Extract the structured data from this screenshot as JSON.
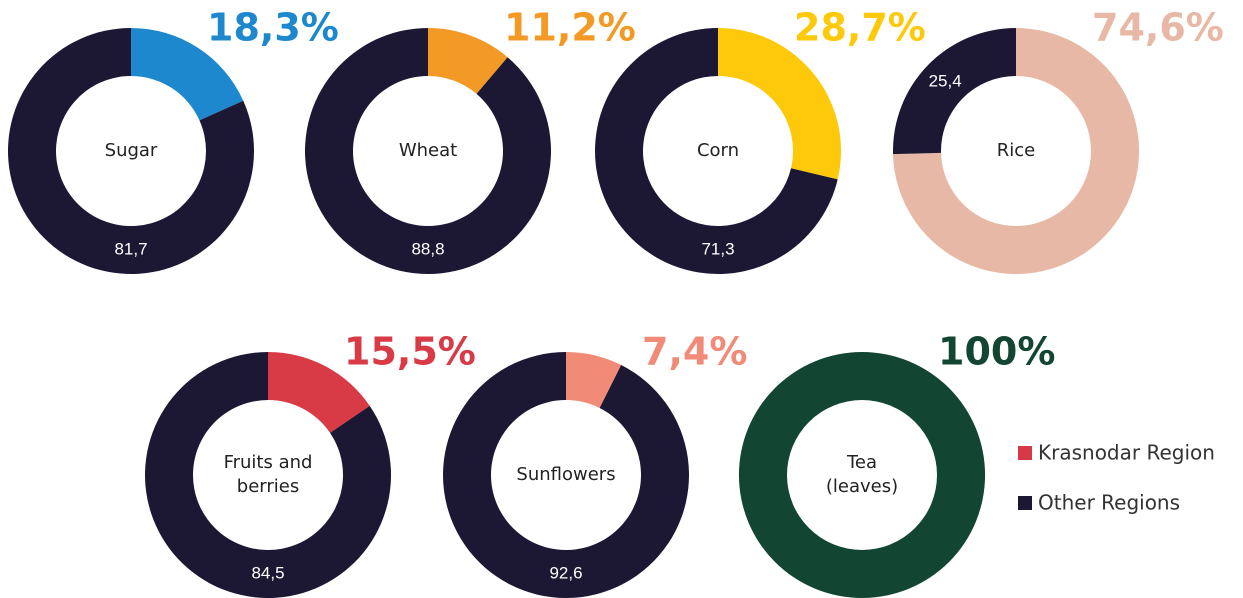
{
  "chart_data": [
    {
      "type": "donut",
      "label": [
        "Sugar"
      ],
      "values": [
        18.3,
        81.7
      ],
      "value_labels": [
        "18,3%",
        "81,7"
      ],
      "colors": [
        "#1e88cf",
        "#1c1834"
      ]
    },
    {
      "type": "donut",
      "label": [
        "Wheat"
      ],
      "values": [
        11.2,
        88.8
      ],
      "value_labels": [
        "11,2%",
        "88,8"
      ],
      "colors": [
        "#f29a25",
        "#1c1834"
      ]
    },
    {
      "type": "donut",
      "label": [
        "Corn"
      ],
      "values": [
        28.7,
        71.3
      ],
      "value_labels": [
        "28,7%",
        "71,3"
      ],
      "colors": [
        "#fdc90a",
        "#1c1834"
      ]
    },
    {
      "type": "donut",
      "label": [
        "Rice"
      ],
      "values": [
        74.6,
        25.4
      ],
      "value_labels": [
        "74,6%",
        "25,4"
      ],
      "colors": [
        "#e8b8a6",
        "#1c1834"
      ]
    },
    {
      "type": "donut",
      "label": [
        "Fruits and",
        "berries"
      ],
      "values": [
        15.5,
        84.5
      ],
      "value_labels": [
        "15,5%",
        "84,5"
      ],
      "colors": [
        "#d83a46",
        "#1c1834"
      ]
    },
    {
      "type": "donut",
      "label": [
        "Sunflowers"
      ],
      "values": [
        7.4,
        92.6
      ],
      "value_labels": [
        "7,4%",
        "92,6"
      ],
      "colors": [
        "#f28a78",
        "#1c1834"
      ]
    },
    {
      "type": "donut",
      "label": [
        "Tea",
        "(leaves)"
      ],
      "values": [
        100
      ],
      "value_labels": [
        "100%"
      ],
      "colors": [
        "#124632"
      ]
    }
  ],
  "legend": [
    {
      "name": "Krasnodar Region",
      "color": "#d63a46"
    },
    {
      "name": "Other Regions",
      "color": "#1c1834"
    }
  ]
}
